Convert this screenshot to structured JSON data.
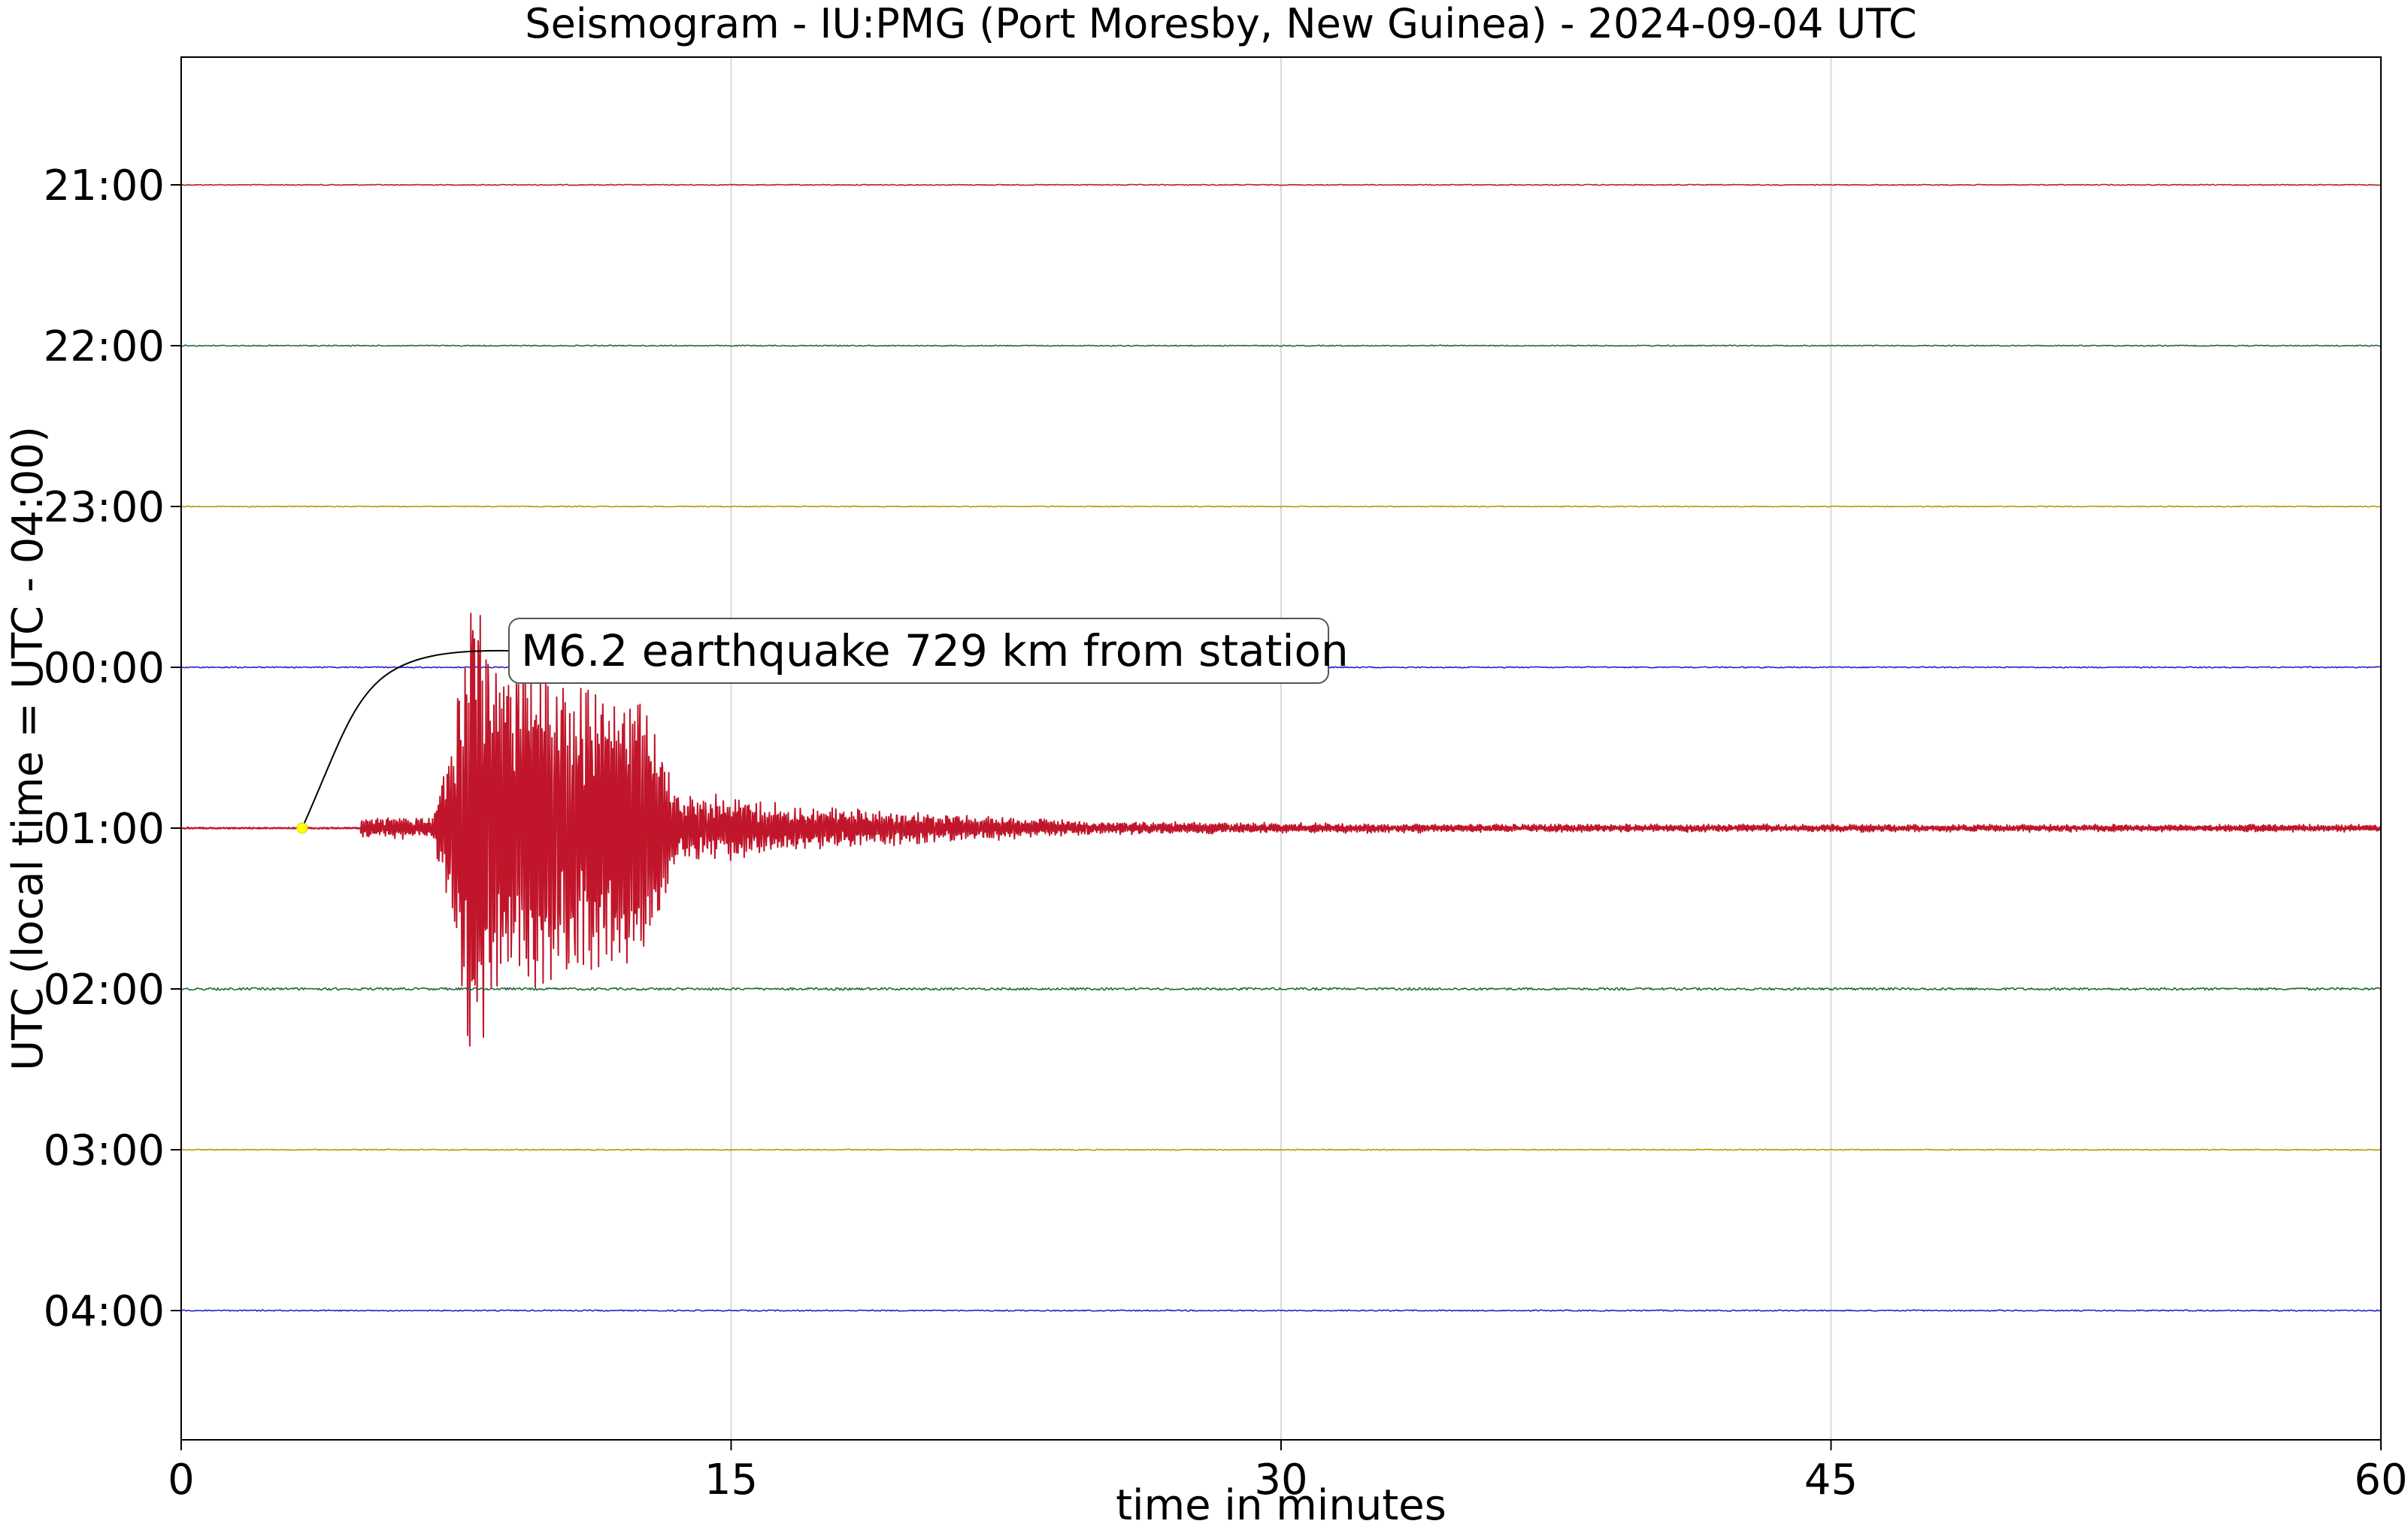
{
  "chart_data": {
    "type": "line",
    "title": "Seismogram - IU:PMG (Port Moresby, New Guinea) - 2024-09-04 UTC",
    "xlabel": "time in minutes",
    "ylabel": "UTC (local time = UTC - 04:00)",
    "xlim": [
      0,
      60
    ],
    "xticks": [
      0,
      15,
      30,
      45,
      60
    ],
    "xtick_labels": [
      "0",
      "15",
      "30",
      "45",
      "60"
    ],
    "grid": "vertical",
    "legend": "none",
    "rows": [
      {
        "label": "21:00",
        "color": "#b22222",
        "noise": 0.6
      },
      {
        "label": "22:00",
        "color": "#1e6b34",
        "noise": 0.7
      },
      {
        "label": "23:00",
        "color": "#b59a00",
        "noise": 0.6
      },
      {
        "label": "00:00",
        "color": "#2222cc",
        "noise": 0.8
      },
      {
        "label": "01:00",
        "color": "#c0152a",
        "noise": 1.0
      },
      {
        "label": "02:00",
        "color": "#1e6b34",
        "noise": 1.6
      },
      {
        "label": "03:00",
        "color": "#b59a00",
        "noise": 0.7
      },
      {
        "label": "04:00",
        "color": "#2222cc",
        "noise": 0.8
      }
    ],
    "event": {
      "row": "01:00",
      "marker_minute": 3.3,
      "marker_color": "#ffff00",
      "onset_minute": 4.9,
      "peak_minute": 7.9,
      "envelope": [
        {
          "minute": 4.9,
          "amp": 0.06
        },
        {
          "minute": 6.8,
          "amp": 0.07
        },
        {
          "minute": 7.4,
          "amp": 0.55
        },
        {
          "minute": 7.9,
          "amp": 1.5
        },
        {
          "minute": 8.6,
          "amp": 1.1
        },
        {
          "minute": 10.5,
          "amp": 0.9
        },
        {
          "minute": 12.5,
          "amp": 0.85
        },
        {
          "minute": 13.5,
          "amp": 0.25
        },
        {
          "minute": 17.0,
          "amp": 0.14
        },
        {
          "minute": 20.0,
          "amp": 0.1
        },
        {
          "minute": 25.0,
          "amp": 0.04
        },
        {
          "minute": 35.0,
          "amp": 0.025
        },
        {
          "minute": 60.0,
          "amp": 0.02
        }
      ],
      "annotation": "M6.2 earthquake 729 km from station"
    }
  }
}
